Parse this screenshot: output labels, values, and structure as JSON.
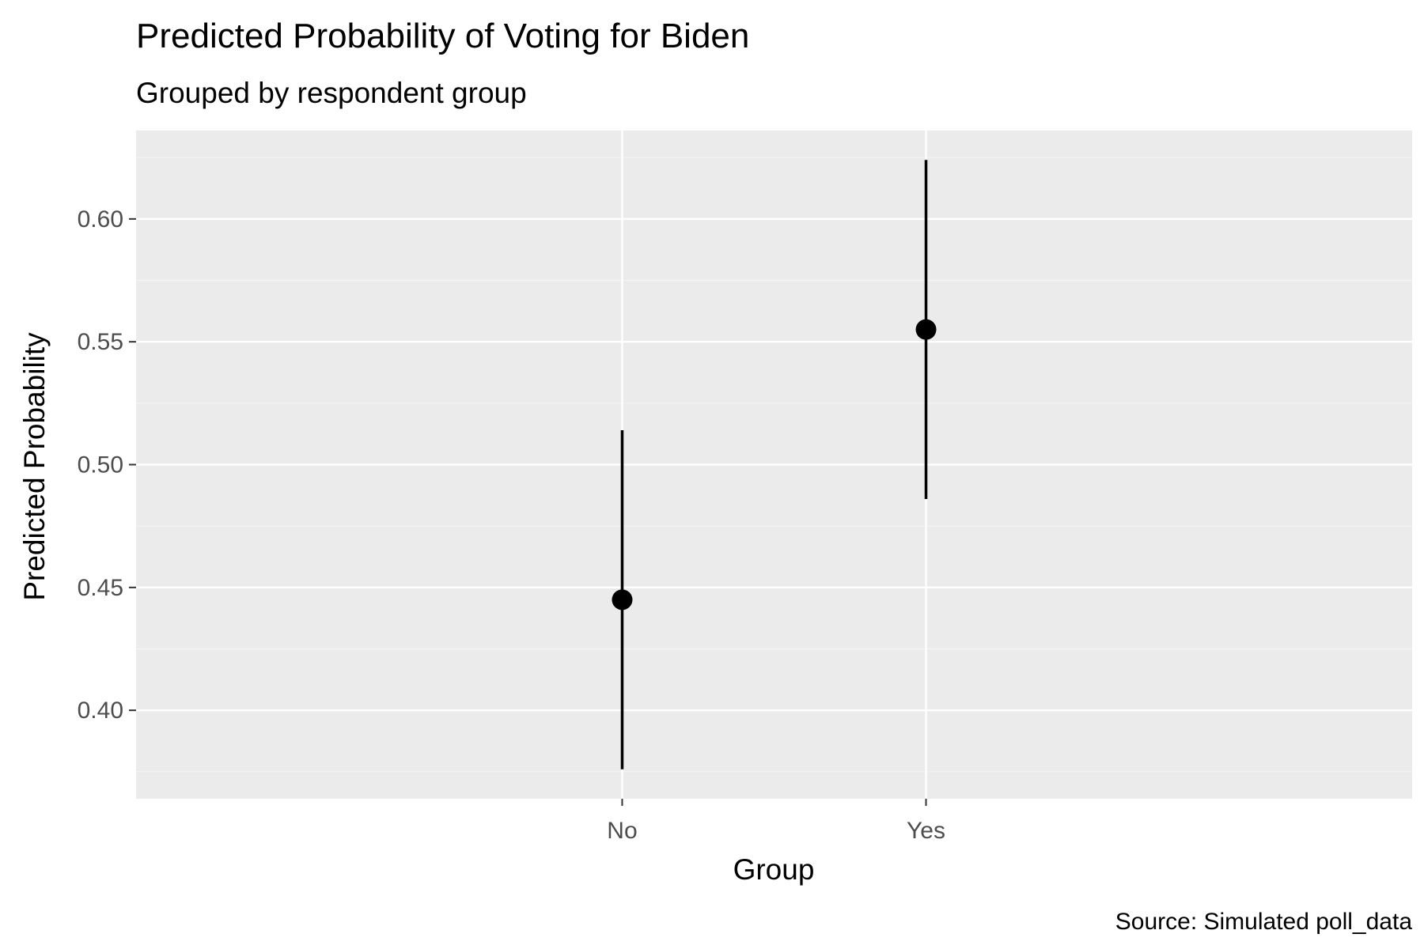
{
  "chart_data": {
    "type": "pointrange",
    "title": "Predicted Probability of Voting for Biden",
    "subtitle": "Grouped by respondent group",
    "caption": "Source: Simulated poll_data",
    "xlabel": "Group",
    "ylabel": "Predicted Probability",
    "categories": [
      "No",
      "Yes"
    ],
    "estimates": [
      0.445,
      0.555
    ],
    "lower": [
      0.376,
      0.486
    ],
    "upper": [
      0.514,
      0.624
    ],
    "ylim": [
      0.364,
      0.636
    ],
    "y_ticks": [
      0.4,
      0.45,
      0.5,
      0.55,
      0.6
    ],
    "y_tick_labels": [
      "0.40",
      "0.45",
      "0.50",
      "0.55",
      "0.60"
    ],
    "grid": true,
    "legend": "none",
    "colors": {
      "panel_background": "#EBEBEB",
      "grid_major": "#FFFFFF",
      "grid_minor": "#F5F5F5",
      "marks": "#000000",
      "tick_text": "#4D4D4D"
    }
  }
}
